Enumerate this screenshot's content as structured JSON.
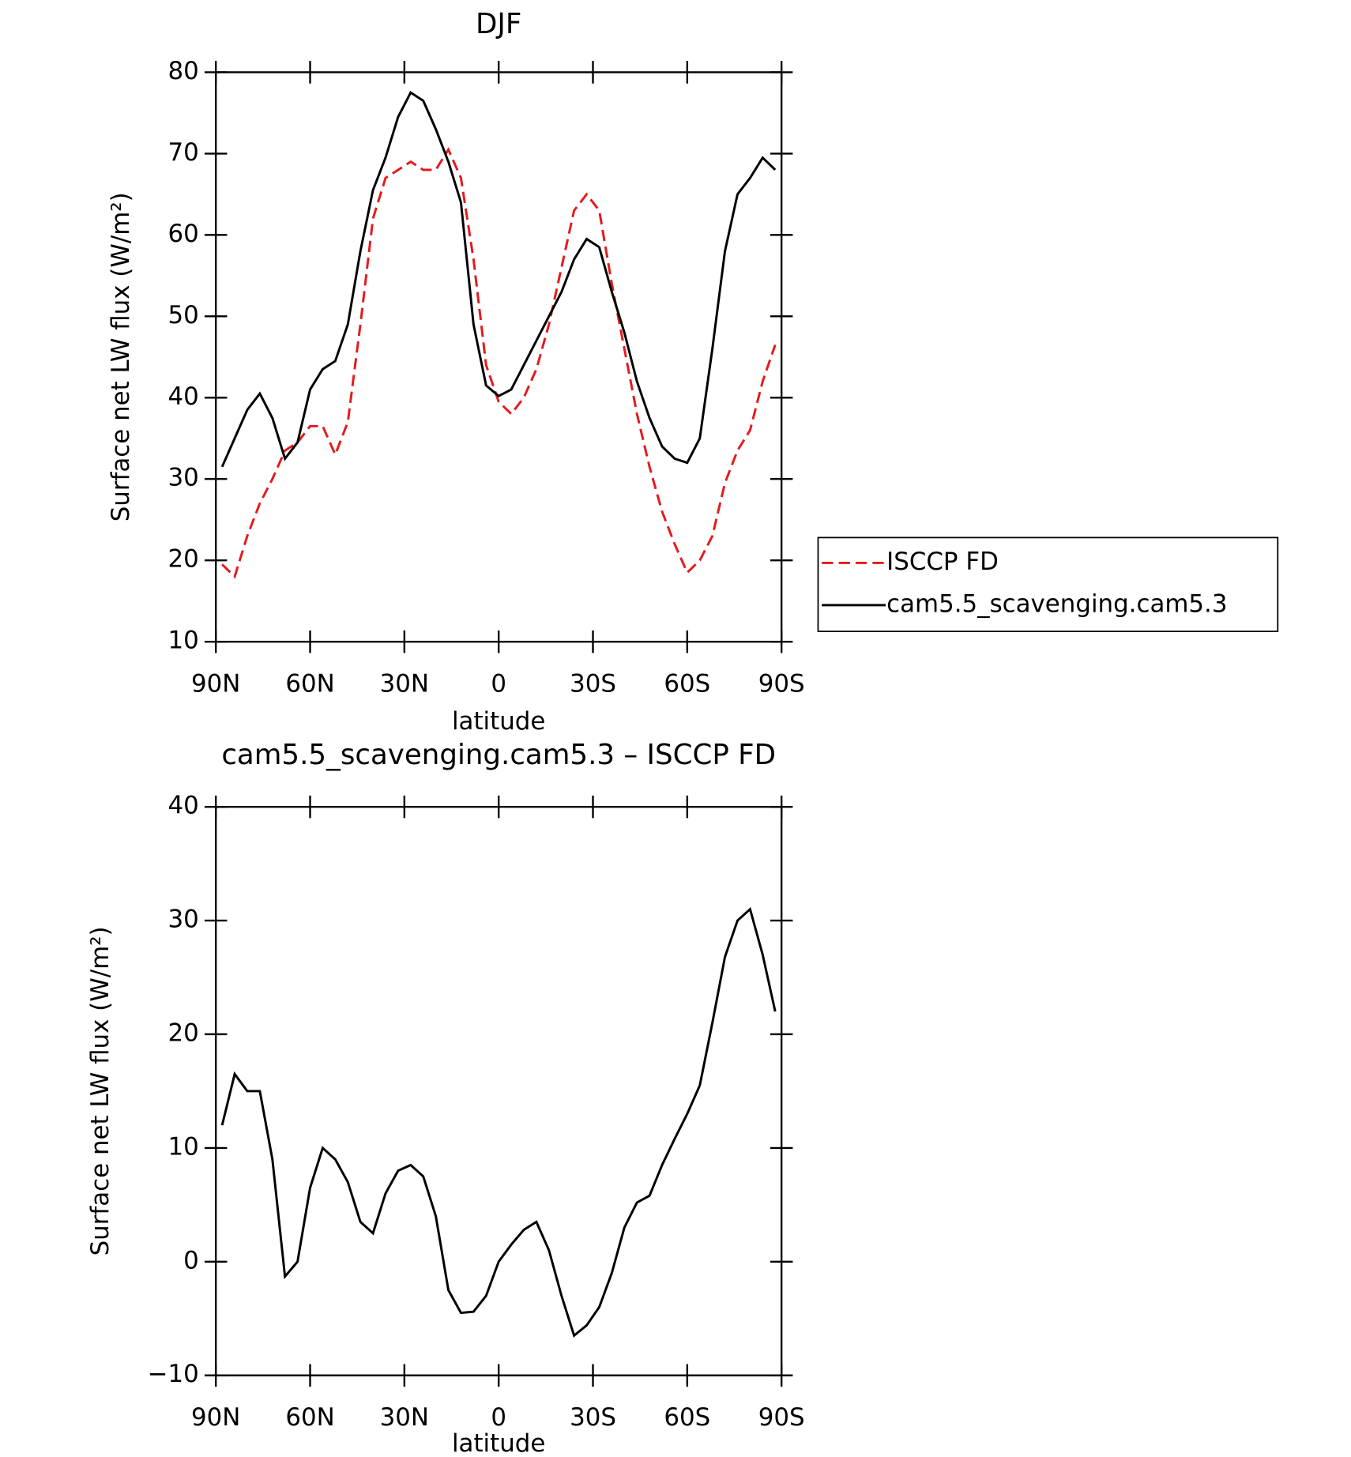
{
  "chart_data": [
    {
      "type": "line",
      "title": "DJF",
      "x_label": "latitude",
      "y_label": "Surface net LW flux (W/m²)",
      "x": [
        88,
        84,
        80,
        76,
        72,
        68,
        64,
        60,
        56,
        52,
        48,
        44,
        40,
        36,
        32,
        28,
        24,
        20,
        16,
        12,
        8,
        4,
        0,
        -4,
        -8,
        -12,
        -16,
        -20,
        -24,
        -28,
        -32,
        -36,
        -40,
        -44,
        -48,
        -52,
        -56,
        -60,
        -64,
        -68,
        -72,
        -76,
        -80,
        -84,
        -88
      ],
      "xlim": [
        90,
        -90
      ],
      "xticks": [
        {
          "value": 90,
          "label": "90N"
        },
        {
          "value": 60,
          "label": "60N"
        },
        {
          "value": 30,
          "label": "30N"
        },
        0,
        {
          "value": -30,
          "label": "30S"
        },
        {
          "value": -60,
          "label": "60S"
        },
        {
          "value": -90,
          "label": "90S"
        }
      ],
      "ylim": [
        10,
        80
      ],
      "yticks": [
        10,
        20,
        30,
        40,
        50,
        60,
        70,
        80
      ],
      "legend": "right",
      "series": [
        {
          "name": "ISCCP FD",
          "color": "#e41a1c",
          "dash": true,
          "values": [
            19.5,
            18,
            23,
            27,
            30,
            33.5,
            34.5,
            36.5,
            36.5,
            33,
            37,
            49,
            62,
            67,
            68,
            69,
            68,
            68,
            70.5,
            67,
            57,
            44,
            39.5,
            38,
            40,
            43.5,
            49,
            56,
            63,
            65,
            63,
            54,
            46,
            38,
            31.5,
            26,
            22,
            18.5,
            20,
            23,
            29.5,
            33.5,
            36,
            42,
            46.5
          ]
        },
        {
          "name": "cam5.5_scavenging.cam5.3",
          "color": "#000000",
          "dash": false,
          "values": [
            31.5,
            35,
            38.5,
            40.5,
            37.5,
            32.5,
            34.5,
            41,
            43.5,
            44.5,
            49,
            58,
            65.5,
            69.5,
            74.5,
            77.5,
            76.5,
            73,
            69,
            64,
            49,
            41.5,
            40.2,
            41,
            44,
            47,
            50,
            53,
            57,
            59.5,
            58.5,
            53,
            48,
            42,
            37.5,
            34,
            32.5,
            32,
            35,
            46,
            58,
            65,
            67,
            69.5,
            68
          ]
        }
      ]
    },
    {
      "type": "line",
      "title": "cam5.5_scavenging.cam5.3 – ISCCP FD",
      "x_label": "latitude",
      "y_label": "Surface net LW flux (W/m²)",
      "x": [
        88,
        84,
        80,
        76,
        72,
        68,
        64,
        60,
        56,
        52,
        48,
        44,
        40,
        36,
        32,
        28,
        24,
        20,
        16,
        12,
        8,
        4,
        0,
        -4,
        -8,
        -12,
        -16,
        -20,
        -24,
        -28,
        -32,
        -36,
        -40,
        -44,
        -48,
        -52,
        -56,
        -60,
        -64,
        -68,
        -72,
        -76,
        -80,
        -84,
        -88
      ],
      "xlim": [
        90,
        -90
      ],
      "xticks": [
        {
          "value": 90,
          "label": "90N"
        },
        {
          "value": 60,
          "label": "60N"
        },
        {
          "value": 30,
          "label": "30N"
        },
        0,
        {
          "value": -30,
          "label": "30S"
        },
        {
          "value": -60,
          "label": "60S"
        },
        {
          "value": -90,
          "label": "90S"
        }
      ],
      "ylim": [
        -10,
        40
      ],
      "yticks": [
        {
          "value": -10,
          "label": "−10"
        },
        0,
        10,
        20,
        30,
        40
      ],
      "series": [
        {
          "color": "#000000",
          "dash": false,
          "values": [
            12,
            16.5,
            15,
            15,
            9,
            -1.3,
            0,
            6.5,
            10,
            9,
            7,
            3.5,
            2.5,
            6,
            8,
            8.5,
            7.5,
            4,
            -2.5,
            -4.5,
            -4.4,
            -3,
            0,
            1.5,
            2.8,
            3.5,
            1,
            -3,
            -6.5,
            -5.6,
            -4,
            -1,
            3,
            5.2,
            5.8,
            8.5,
            10.8,
            13,
            15.5,
            21,
            26.8,
            30,
            31,
            27,
            22
          ]
        }
      ]
    }
  ]
}
